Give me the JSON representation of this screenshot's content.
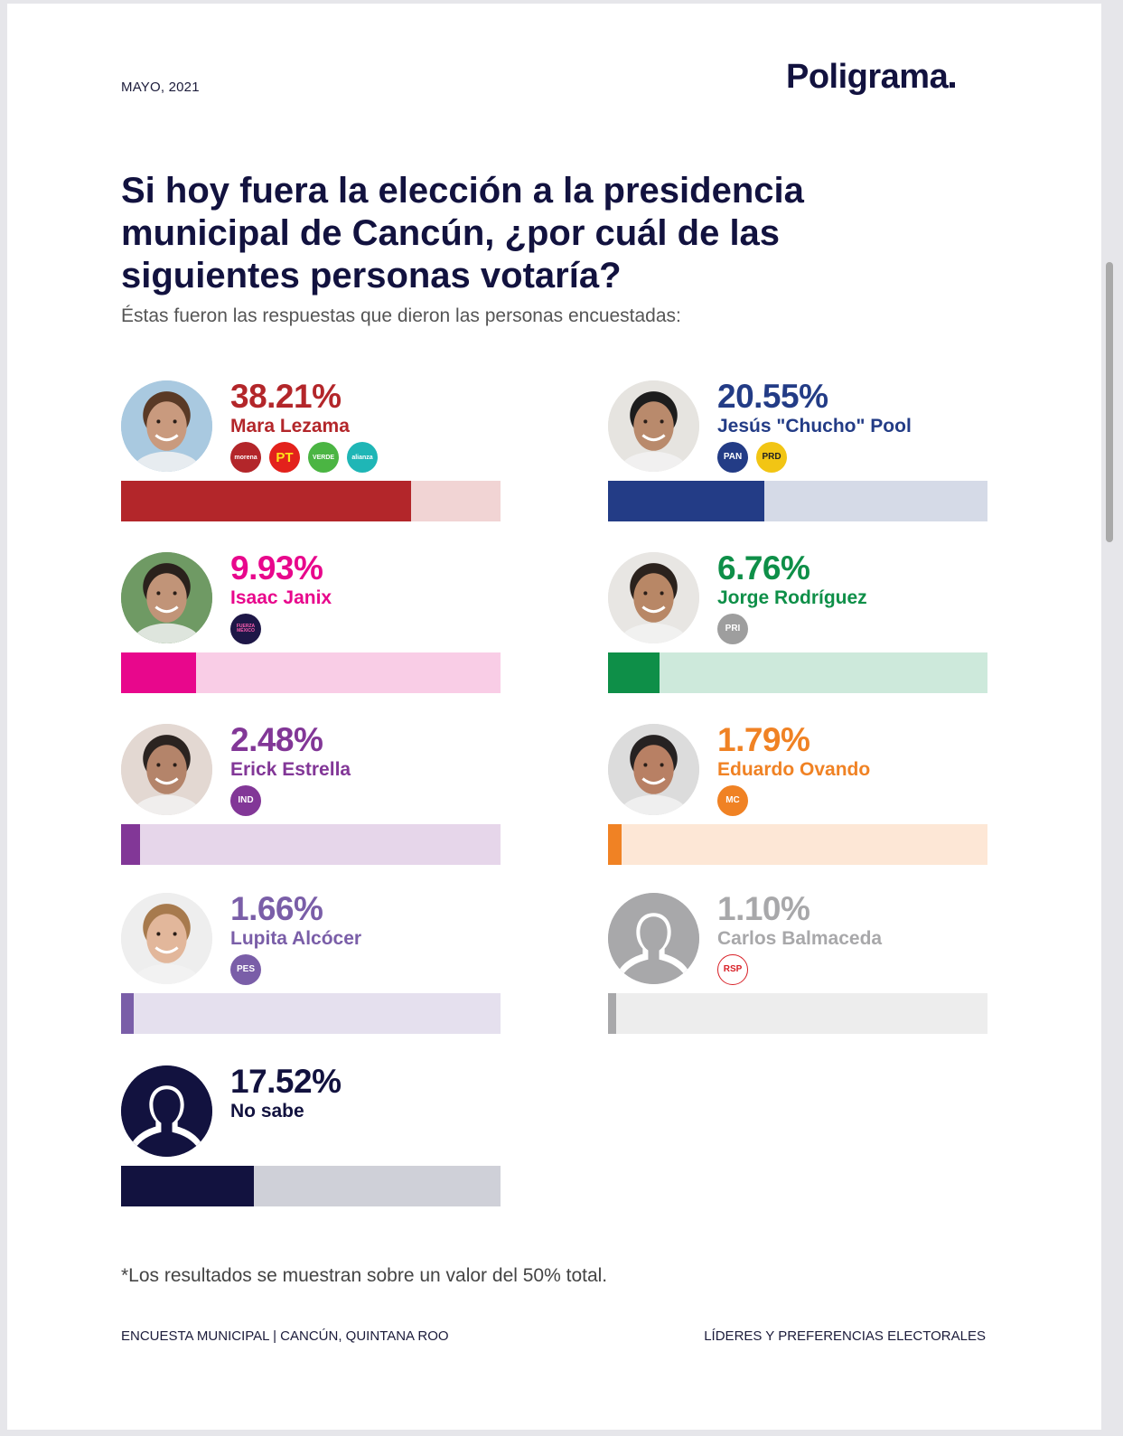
{
  "header": {
    "date": "MAYO, 2021",
    "brand": "Poligrama"
  },
  "title": "Si hoy fuera la elección a la presidencia municipal de Cancún, ¿por cuál de las siguientes personas votaría?",
  "subtitle": "Éstas fueron las respuestas que dieron las personas encuestadas:",
  "chart_data": {
    "type": "bar",
    "title": "Si hoy fuera la elección a la presidencia municipal de Cancún, ¿por cuál de las siguientes personas votaría?",
    "scale_max": 50,
    "unit": "%",
    "categories": [
      "Mara Lezama",
      "Jesús \"Chucho\" Pool",
      "Isaac Janix",
      "Jorge Rodríguez",
      "Erick Estrella",
      "Eduardo Ovando",
      "Lupita Alcócer",
      "Carlos Balmaceda",
      "No sabe"
    ],
    "values": [
      38.21,
      20.55,
      9.93,
      6.76,
      2.48,
      1.79,
      1.66,
      1.1,
      17.52
    ]
  },
  "candidates": [
    {
      "name": "Mara Lezama",
      "pct_label": "38.21%",
      "value": 38.21,
      "color": "#b3262a",
      "track": "#f1d4d4",
      "avatar": "photo",
      "skin": "#c99a7e",
      "hair": "#5a3a26",
      "bg": "#a9c9e0",
      "parties": [
        {
          "label": "morena",
          "bg": "#b3262a",
          "fg": "#ffffff"
        },
        {
          "label": "PT",
          "bg": "#e3221c",
          "fg": "#ffe11a"
        },
        {
          "label": "VERDE",
          "bg": "#4bb543",
          "fg": "#ffffff"
        },
        {
          "label": "alianza",
          "bg": "#1fb6b6",
          "fg": "#ffffff"
        }
      ]
    },
    {
      "name": "Jesús \"Chucho\" Pool",
      "pct_label": "20.55%",
      "value": 20.55,
      "color": "#233c86",
      "track": "#d5dae7",
      "avatar": "photo",
      "skin": "#b98a6c",
      "hair": "#1d1d1d",
      "bg": "#e6e4e0",
      "parties": [
        {
          "label": "PAN",
          "bg": "#233c86",
          "fg": "#ffffff"
        },
        {
          "label": "PRD",
          "bg": "#f2c514",
          "fg": "#222222"
        }
      ]
    },
    {
      "name": "Isaac Janix",
      "pct_label": "9.93%",
      "value": 9.93,
      "color": "#e8078c",
      "track": "#f9cde6",
      "avatar": "photo",
      "skin": "#c19478",
      "hair": "#2a211c",
      "bg": "#6f9a64",
      "parties": [
        {
          "label": "FUERZA MÉXICO",
          "bg": "#1e1747",
          "fg": "#ff5fb1"
        }
      ]
    },
    {
      "name": "Jorge Rodríguez",
      "pct_label": "6.76%",
      "value": 6.76,
      "color": "#0e8f48",
      "track": "#cde9db",
      "avatar": "photo",
      "skin": "#b88766",
      "hair": "#2b221d",
      "bg": "#e8e6e3",
      "parties": [
        {
          "label": "PRI",
          "bg": "#9e9e9e",
          "fg": "#ffffff"
        }
      ]
    },
    {
      "name": "Erick Estrella",
      "pct_label": "2.48%",
      "value": 2.48,
      "color": "#823797",
      "track": "#e6d6ea",
      "avatar": "photo",
      "skin": "#b4846a",
      "hair": "#2b2320",
      "bg": "#e3d8d2",
      "parties": [
        {
          "label": "IND",
          "bg": "#823797",
          "fg": "#ffffff"
        }
      ]
    },
    {
      "name": "Eduardo Ovando",
      "pct_label": "1.79%",
      "value": 1.79,
      "color": "#f08224",
      "track": "#fde7d6",
      "avatar": "photo",
      "skin": "#b88064",
      "hair": "#262222",
      "bg": "#dcdcdc",
      "parties": [
        {
          "label": "MC",
          "bg": "#f08224",
          "fg": "#ffffff"
        }
      ]
    },
    {
      "name": "Lupita Alcócer",
      "pct_label": "1.66%",
      "value": 1.66,
      "color": "#7a5ea8",
      "track": "#e5e0ee",
      "avatar": "photo",
      "skin": "#e2b79b",
      "hair": "#a77a4d",
      "bg": "#eeeeee",
      "parties": [
        {
          "label": "PES",
          "bg": "#7a5ea8",
          "fg": "#ffffff"
        }
      ]
    },
    {
      "name": "Carlos Balmaceda",
      "pct_label": "1.10%",
      "value": 1.1,
      "color": "#a8a8aa",
      "track": "#ededed",
      "avatar": "silhouette",
      "bg": "#a8a8aa",
      "parties": [
        {
          "label": "RSP",
          "bg": "#ffffff",
          "fg": "#d81f26"
        }
      ]
    },
    {
      "name": "No sabe",
      "pct_label": "17.52%",
      "value": 17.52,
      "color": "#12123f",
      "track": "#cfd0d8",
      "avatar": "silhouette",
      "bg": "#12123f",
      "parties": []
    }
  ],
  "note": "*Los resultados se muestran sobre un valor del 50% total.",
  "footer": {
    "left": "ENCUESTA MUNICIPAL | CANCÚN, QUINTANA ROO",
    "right": "LÍDERES Y PREFERENCIAS ELECTORALES"
  }
}
